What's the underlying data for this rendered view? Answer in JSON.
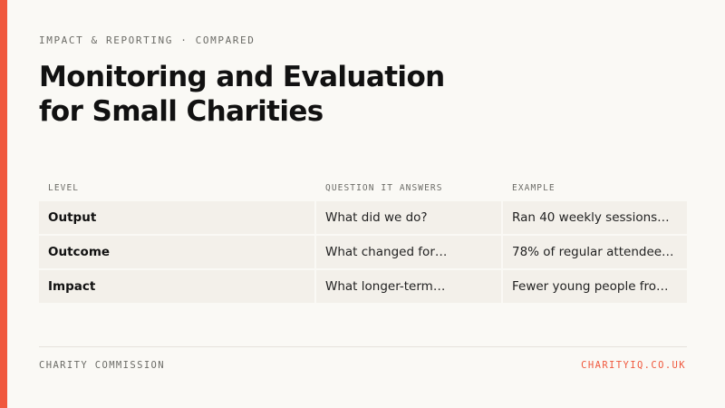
{
  "eyebrow": "IMPACT & REPORTING · COMPARED",
  "title": {
    "line1": "Monitoring and Evaluation",
    "line2": "for Small Charities"
  },
  "table": {
    "headers": [
      "LEVEL",
      "QUESTION IT ANSWERS",
      "EXAMPLE"
    ],
    "rows": [
      {
        "level": "Output",
        "question": "What did we do?",
        "example": "Ran 40 weekly sessions…"
      },
      {
        "level": "Outcome",
        "question": "What changed for…",
        "example": "78% of regular attendee…"
      },
      {
        "level": "Impact",
        "question": "What longer-term…",
        "example": "Fewer young people fro…"
      }
    ]
  },
  "footer": {
    "source": "CHARITY COMMISSION",
    "site": "CHARITYIQ.CO.UK"
  },
  "colors": {
    "accent": "#f0583d",
    "background": "#faf9f5",
    "cell": "#f3f0ea"
  }
}
